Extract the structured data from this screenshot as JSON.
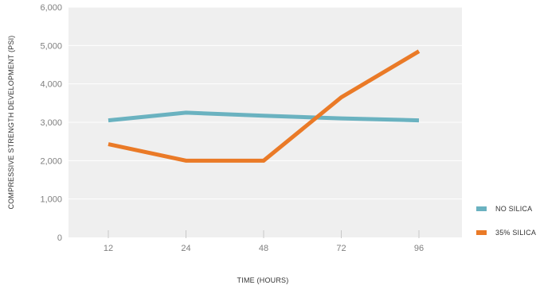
{
  "chart_data": {
    "type": "line",
    "title": "",
    "xlabel": "TIME (HOURS)",
    "ylabel": "COMPRESSIVE STRENGTH DEVELOPMENT (PSI)",
    "x": [
      "12",
      "24",
      "48",
      "72",
      "96"
    ],
    "ylim": [
      0,
      6000
    ],
    "yticks": [
      "0",
      "1,000",
      "2,000",
      "3,000",
      "4,000",
      "5,000",
      "6,000"
    ],
    "ytick_values": [
      0,
      1000,
      2000,
      3000,
      4000,
      5000,
      6000
    ],
    "grid": true,
    "legend_position": "right",
    "series": [
      {
        "name": "NO SILICA",
        "color": "#6ab2c0",
        "values": [
          3050,
          3250,
          3170,
          3100,
          3050
        ]
      },
      {
        "name": "35% SILICA",
        "color": "#ea7a27",
        "values": [
          2430,
          2000,
          2000,
          3650,
          4850
        ]
      }
    ]
  },
  "colors": {
    "plot_background": "#efefef",
    "gridline": "#ffffff",
    "tick_mark": "#c8c8c8"
  }
}
